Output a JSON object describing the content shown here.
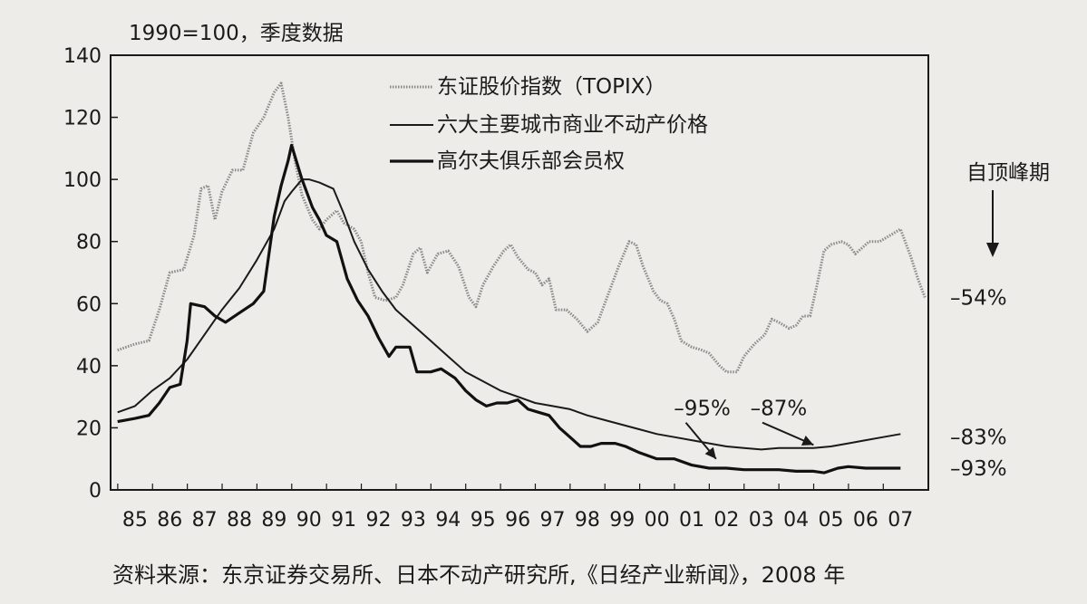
{
  "page": {
    "source_note": "资料来源：东京证券交易所、日本不动产研究所,《日经产业新闻》，2008 年"
  },
  "chart_data": {
    "type": "line",
    "title": "",
    "unit_label": "1990=100，季度数据",
    "xlabel": "",
    "ylabel": "",
    "ylim": [
      0,
      140
    ],
    "yticks": [
      0,
      20,
      40,
      60,
      80,
      100,
      120,
      140
    ],
    "xlim": [
      1984.8,
      2008.3
    ],
    "xticks": [
      {
        "value": 1985.5,
        "label": "85"
      },
      {
        "value": 1986.5,
        "label": "86"
      },
      {
        "value": 1987.5,
        "label": "87"
      },
      {
        "value": 1988.5,
        "label": "88"
      },
      {
        "value": 1989.5,
        "label": "89"
      },
      {
        "value": 1990.5,
        "label": "90"
      },
      {
        "value": 1991.5,
        "label": "91"
      },
      {
        "value": 1992.5,
        "label": "92"
      },
      {
        "value": 1993.5,
        "label": "93"
      },
      {
        "value": 1994.5,
        "label": "94"
      },
      {
        "value": 1995.5,
        "label": "95"
      },
      {
        "value": 1996.5,
        "label": "96"
      },
      {
        "value": 1997.5,
        "label": "97"
      },
      {
        "value": 1998.5,
        "label": "98"
      },
      {
        "value": 1999.5,
        "label": "99"
      },
      {
        "value": 2000.5,
        "label": "00"
      },
      {
        "value": 2001.5,
        "label": "01"
      },
      {
        "value": 2002.5,
        "label": "02"
      },
      {
        "value": 2003.5,
        "label": "03"
      },
      {
        "value": 2004.5,
        "label": "04"
      },
      {
        "value": 2005.5,
        "label": "05"
      },
      {
        "value": 2006.5,
        "label": "06"
      },
      {
        "value": 2007.5,
        "label": "07"
      }
    ],
    "grid": false,
    "legend_position": "top-center",
    "series": [
      {
        "name": "东证股价指数（TOPIX）",
        "color": "#8a8a8a",
        "style": "gray-dotted",
        "points": [
          [
            1985.0,
            45
          ],
          [
            1985.5,
            47
          ],
          [
            1985.9,
            48
          ],
          [
            1986.2,
            58
          ],
          [
            1986.5,
            70
          ],
          [
            1986.9,
            71
          ],
          [
            1987.2,
            82
          ],
          [
            1987.4,
            97
          ],
          [
            1987.6,
            98
          ],
          [
            1987.8,
            87
          ],
          [
            1988.0,
            96
          ],
          [
            1988.3,
            103
          ],
          [
            1988.6,
            103
          ],
          [
            1988.9,
            115
          ],
          [
            1989.2,
            120
          ],
          [
            1989.5,
            128
          ],
          [
            1989.7,
            131
          ],
          [
            1989.9,
            120
          ],
          [
            1990.1,
            106
          ],
          [
            1990.3,
            95
          ],
          [
            1990.6,
            87
          ],
          [
            1990.8,
            84
          ],
          [
            1991.0,
            87
          ],
          [
            1991.3,
            90
          ],
          [
            1991.5,
            86
          ],
          [
            1991.8,
            84
          ],
          [
            1992.0,
            80
          ],
          [
            1992.2,
            70
          ],
          [
            1992.4,
            62
          ],
          [
            1992.7,
            61
          ],
          [
            1993.0,
            62
          ],
          [
            1993.2,
            66
          ],
          [
            1993.5,
            76
          ],
          [
            1993.7,
            78
          ],
          [
            1993.9,
            70
          ],
          [
            1994.2,
            76
          ],
          [
            1994.5,
            77
          ],
          [
            1994.8,
            72
          ],
          [
            1995.1,
            62
          ],
          [
            1995.3,
            59
          ],
          [
            1995.5,
            66
          ],
          [
            1995.8,
            72
          ],
          [
            1996.1,
            77
          ],
          [
            1996.3,
            79
          ],
          [
            1996.5,
            75
          ],
          [
            1996.8,
            71
          ],
          [
            1997.0,
            70
          ],
          [
            1997.2,
            66
          ],
          [
            1997.4,
            68
          ],
          [
            1997.6,
            58
          ],
          [
            1997.9,
            58
          ],
          [
            1998.2,
            55
          ],
          [
            1998.5,
            51
          ],
          [
            1998.8,
            54
          ],
          [
            1999.1,
            63
          ],
          [
            1999.4,
            72
          ],
          [
            1999.7,
            80
          ],
          [
            1999.9,
            79
          ],
          [
            2000.1,
            72
          ],
          [
            2000.4,
            64
          ],
          [
            2000.6,
            61
          ],
          [
            2000.8,
            60
          ],
          [
            2001.0,
            55
          ],
          [
            2001.2,
            48
          ],
          [
            2001.5,
            46
          ],
          [
            2001.8,
            45
          ],
          [
            2002.0,
            44
          ],
          [
            2002.3,
            40
          ],
          [
            2002.5,
            38
          ],
          [
            2002.8,
            38
          ],
          [
            2003.0,
            43
          ],
          [
            2003.3,
            47
          ],
          [
            2003.6,
            50
          ],
          [
            2003.8,
            55
          ],
          [
            2004.0,
            54
          ],
          [
            2004.3,
            52
          ],
          [
            2004.5,
            53
          ],
          [
            2004.7,
            56
          ],
          [
            2004.9,
            56
          ],
          [
            2005.1,
            66
          ],
          [
            2005.3,
            77
          ],
          [
            2005.5,
            79
          ],
          [
            2005.8,
            80
          ],
          [
            2006.0,
            79
          ],
          [
            2006.2,
            76
          ],
          [
            2006.4,
            78
          ],
          [
            2006.6,
            80
          ],
          [
            2006.9,
            80
          ],
          [
            2007.2,
            82
          ],
          [
            2007.5,
            84
          ],
          [
            2007.8,
            75
          ],
          [
            2008.0,
            68
          ],
          [
            2008.2,
            62
          ]
        ]
      },
      {
        "name": "六大主要城市商业不动产价格",
        "color": "#1a1a1a",
        "style": "thin-solid",
        "points": [
          [
            1985.0,
            25
          ],
          [
            1985.5,
            27
          ],
          [
            1986.0,
            32
          ],
          [
            1986.5,
            36
          ],
          [
            1987.0,
            42
          ],
          [
            1987.5,
            50
          ],
          [
            1988.0,
            58
          ],
          [
            1988.5,
            65
          ],
          [
            1989.0,
            74
          ],
          [
            1989.5,
            84
          ],
          [
            1989.8,
            93
          ],
          [
            1990.0,
            96
          ],
          [
            1990.3,
            100
          ],
          [
            1990.5,
            100
          ],
          [
            1990.8,
            99
          ],
          [
            1991.2,
            97
          ],
          [
            1991.5,
            89
          ],
          [
            1991.8,
            80
          ],
          [
            1992.2,
            71
          ],
          [
            1992.6,
            64
          ],
          [
            1993.0,
            58
          ],
          [
            1993.5,
            53
          ],
          [
            1994.0,
            48
          ],
          [
            1994.5,
            43
          ],
          [
            1995.0,
            38
          ],
          [
            1995.5,
            35
          ],
          [
            1996.0,
            32
          ],
          [
            1996.5,
            30
          ],
          [
            1997.0,
            28
          ],
          [
            1997.5,
            27
          ],
          [
            1998.0,
            26
          ],
          [
            1998.5,
            24
          ],
          [
            1999.0,
            22.5
          ],
          [
            1999.5,
            21
          ],
          [
            2000.0,
            19.5
          ],
          [
            2000.5,
            18
          ],
          [
            2001.0,
            17
          ],
          [
            2001.5,
            16
          ],
          [
            2002.0,
            15
          ],
          [
            2002.5,
            14
          ],
          [
            2003.0,
            13.5
          ],
          [
            2003.5,
            13
          ],
          [
            2004.0,
            13.5
          ],
          [
            2004.5,
            13.5
          ],
          [
            2005.0,
            13.5
          ],
          [
            2005.5,
            14
          ],
          [
            2006.0,
            15
          ],
          [
            2006.5,
            16
          ],
          [
            2007.0,
            17
          ],
          [
            2007.5,
            18
          ]
        ]
      },
      {
        "name": "高尔夫俱乐部会员权",
        "color": "#111111",
        "style": "thick-solid",
        "points": [
          [
            1985.0,
            22
          ],
          [
            1985.5,
            23
          ],
          [
            1985.9,
            24
          ],
          [
            1986.2,
            28
          ],
          [
            1986.5,
            33
          ],
          [
            1986.8,
            34
          ],
          [
            1987.0,
            48
          ],
          [
            1987.1,
            60
          ],
          [
            1987.5,
            59
          ],
          [
            1987.8,
            56
          ],
          [
            1988.1,
            54
          ],
          [
            1988.5,
            57
          ],
          [
            1988.9,
            60
          ],
          [
            1989.2,
            64
          ],
          [
            1989.5,
            88
          ],
          [
            1989.7,
            98
          ],
          [
            1989.9,
            106
          ],
          [
            1990.0,
            111
          ],
          [
            1990.3,
            100
          ],
          [
            1990.6,
            91
          ],
          [
            1990.8,
            87
          ],
          [
            1991.0,
            82
          ],
          [
            1991.3,
            80
          ],
          [
            1991.6,
            68
          ],
          [
            1991.9,
            61
          ],
          [
            1992.2,
            56
          ],
          [
            1992.5,
            49
          ],
          [
            1992.8,
            43
          ],
          [
            1993.0,
            46
          ],
          [
            1993.4,
            46
          ],
          [
            1993.6,
            38
          ],
          [
            1994.0,
            38
          ],
          [
            1994.3,
            39
          ],
          [
            1994.7,
            36
          ],
          [
            1995.0,
            32
          ],
          [
            1995.3,
            29
          ],
          [
            1995.6,
            27
          ],
          [
            1995.9,
            28
          ],
          [
            1996.2,
            28
          ],
          [
            1996.5,
            29
          ],
          [
            1996.8,
            26
          ],
          [
            1997.1,
            25
          ],
          [
            1997.4,
            24
          ],
          [
            1997.7,
            20
          ],
          [
            1998.0,
            17
          ],
          [
            1998.3,
            14
          ],
          [
            1998.6,
            14
          ],
          [
            1998.9,
            15
          ],
          [
            1999.3,
            15
          ],
          [
            1999.6,
            14
          ],
          [
            2000.0,
            12
          ],
          [
            2000.5,
            10
          ],
          [
            2001.0,
            10
          ],
          [
            2001.5,
            8
          ],
          [
            2002.0,
            7
          ],
          [
            2002.5,
            7
          ],
          [
            2003.0,
            6.5
          ],
          [
            2003.5,
            6.5
          ],
          [
            2004.0,
            6.5
          ],
          [
            2004.5,
            6
          ],
          [
            2005.0,
            6
          ],
          [
            2005.3,
            5.5
          ],
          [
            2005.7,
            7
          ],
          [
            2006.0,
            7.5
          ],
          [
            2006.5,
            7
          ],
          [
            2007.0,
            7
          ],
          [
            2007.5,
            7
          ]
        ]
      }
    ],
    "annotations": [
      {
        "text": "–95%",
        "x": 2001.8,
        "y": 24,
        "arrow_to": [
          2002.2,
          10
        ]
      },
      {
        "text": "–87%",
        "x": 2004.0,
        "y": 24,
        "arrow_to": [
          2005.0,
          14.5
        ]
      }
    ],
    "right_labels": {
      "header": "自顶峰期",
      "items": [
        {
          "text": "–54%",
          "y": 62
        },
        {
          "text": "–83%",
          "y": 17
        },
        {
          "text": "–93%",
          "y": 7
        }
      ]
    }
  }
}
